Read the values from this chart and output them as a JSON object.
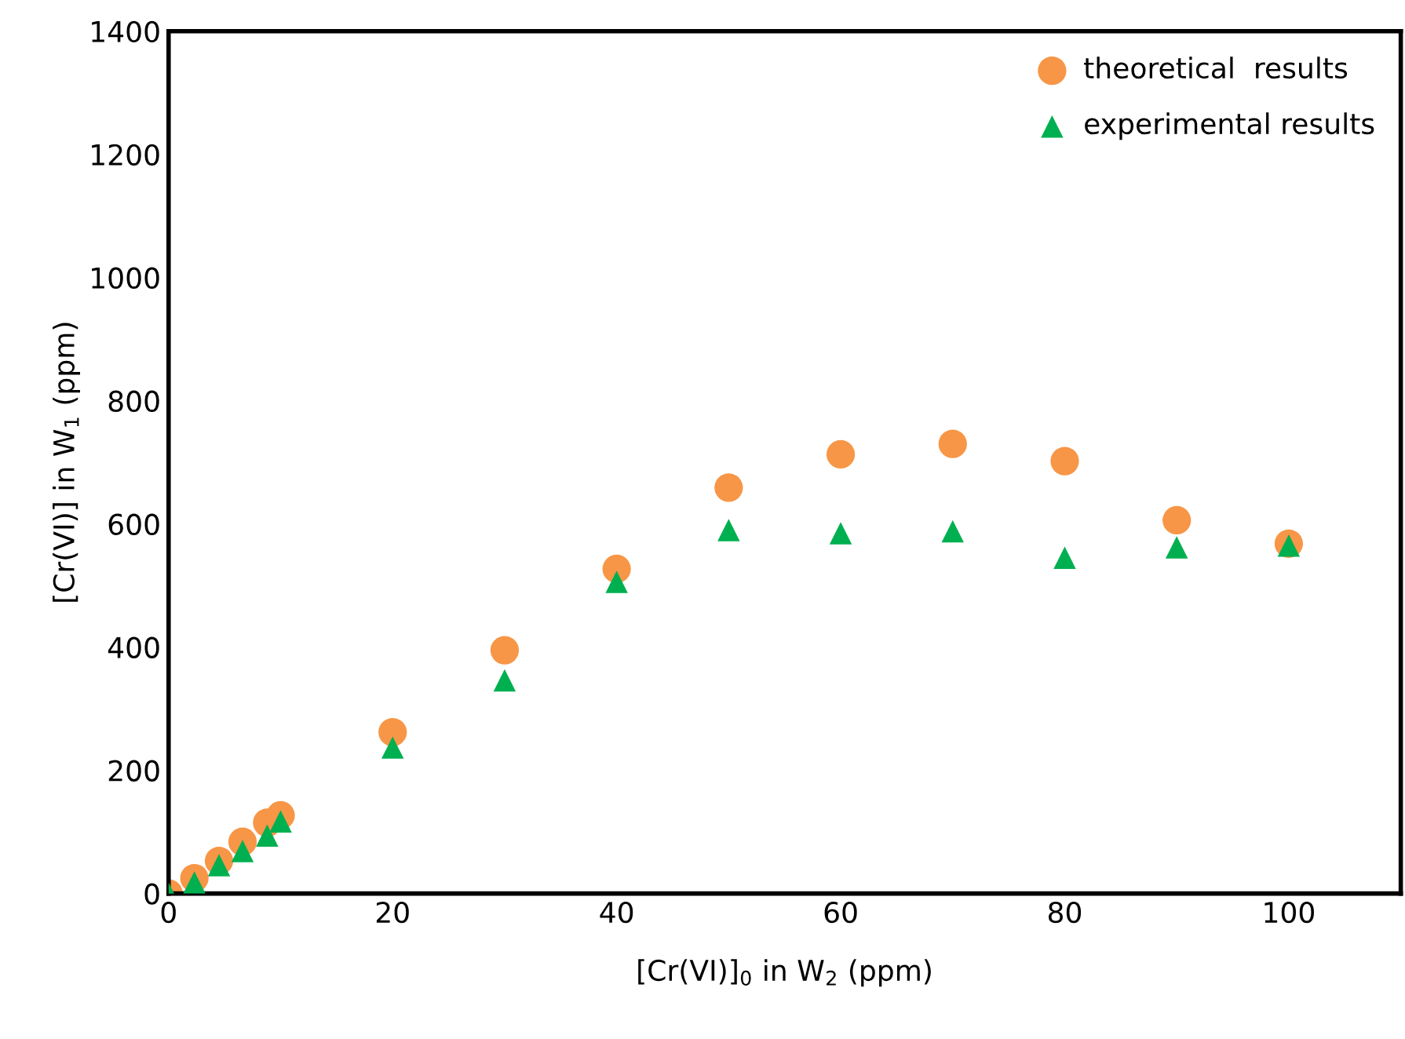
{
  "chart_data": {
    "type": "scatter",
    "xlabel": "[Cr(VI)]$_{0}$ in W$_{2}$ (ppm)",
    "ylabel": "[Cr(VI)] in W$_{1}$ (ppm)",
    "xlim": [
      0,
      110
    ],
    "xticks": [
      0,
      20,
      40,
      60,
      80,
      100
    ],
    "ylim": [
      0,
      1400
    ],
    "yticks": [
      0,
      200,
      400,
      600,
      800,
      1000,
      1200,
      1400
    ],
    "grid": false,
    "legend": "top right",
    "series": [
      {
        "name": "theoretical  results",
        "color": "#f79646",
        "marker": "circle",
        "x": [
          0,
          2.3,
          4.5,
          6.6,
          8.8,
          10,
          20,
          30,
          40,
          50,
          60,
          70,
          80,
          90,
          100
        ],
        "values": [
          0,
          25,
          53,
          84,
          115,
          127,
          262,
          395,
          527,
          659,
          713,
          730,
          702,
          606,
          568
        ]
      },
      {
        "name": "experimental results",
        "color": "#00b050",
        "marker": "triangle",
        "x": [
          0,
          2.3,
          4.5,
          6.6,
          8.8,
          10,
          20,
          30,
          40,
          50,
          60,
          70,
          80,
          90,
          100
        ],
        "values": [
          0,
          18,
          46,
          69,
          94,
          117,
          237,
          346,
          506,
          590,
          585,
          588,
          545,
          562,
          565
        ]
      }
    ]
  }
}
